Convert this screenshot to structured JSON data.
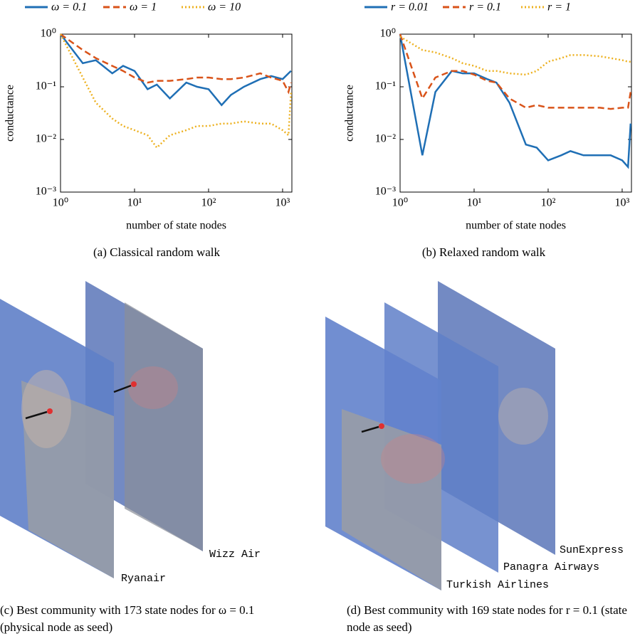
{
  "chart_data": [
    {
      "type": "line",
      "caption": "(a) Classical random walk",
      "xlabel": "number of state nodes",
      "ylabel": "conductance",
      "log_x": true,
      "log_y": true,
      "legend": "top",
      "xlim": [
        1,
        1335
      ],
      "ylim": [
        0.001,
        1
      ],
      "xticks": [
        {
          "value": 1,
          "label": "10⁰"
        },
        {
          "value": 10,
          "label": "10¹"
        },
        {
          "value": 100,
          "label": "10²"
        },
        {
          "value": 1000,
          "label": "10³"
        }
      ],
      "yticks": [
        {
          "value": 0.001,
          "label": "10⁻³"
        },
        {
          "value": 0.01,
          "label": "10⁻²"
        },
        {
          "value": 0.1,
          "label": "10⁻¹"
        },
        {
          "value": 1,
          "label": "10⁰"
        }
      ],
      "x": [
        1,
        2,
        3,
        5,
        7,
        10,
        15,
        20,
        30,
        50,
        70,
        100,
        150,
        200,
        300,
        500,
        700,
        1000,
        1200,
        1300
      ],
      "series": [
        {
          "name": "ω = 0.1",
          "color": "#1f6fb5",
          "dash": "solid",
          "values": [
            1,
            0.28,
            0.32,
            0.18,
            0.25,
            0.2,
            0.09,
            0.11,
            0.06,
            0.12,
            0.1,
            0.09,
            0.045,
            0.07,
            0.1,
            0.14,
            0.16,
            0.14,
            0.18,
            0.2
          ]
        },
        {
          "name": "ω = 1",
          "color": "#d95319",
          "dash": "dashed",
          "values": [
            1,
            0.5,
            0.35,
            0.25,
            0.2,
            0.15,
            0.12,
            0.13,
            0.13,
            0.14,
            0.15,
            0.15,
            0.14,
            0.14,
            0.15,
            0.18,
            0.15,
            0.13,
            0.08,
            0.12
          ]
        },
        {
          "name": "ω = 10",
          "color": "#edb120",
          "dash": "dotted",
          "values": [
            1,
            0.15,
            0.05,
            0.025,
            0.018,
            0.015,
            0.012,
            0.007,
            0.012,
            0.015,
            0.018,
            0.018,
            0.02,
            0.02,
            0.022,
            0.02,
            0.02,
            0.015,
            0.012,
            0.08
          ]
        }
      ]
    },
    {
      "type": "line",
      "caption": "(b) Relaxed random walk",
      "xlabel": "number of state nodes",
      "ylabel": "conductance",
      "log_x": true,
      "log_y": true,
      "legend": "top",
      "xlim": [
        1,
        1335
      ],
      "ylim": [
        0.001,
        1
      ],
      "xticks": [
        {
          "value": 1,
          "label": "10⁰"
        },
        {
          "value": 10,
          "label": "10¹"
        },
        {
          "value": 100,
          "label": "10²"
        },
        {
          "value": 1000,
          "label": "10³"
        }
      ],
      "yticks": [
        {
          "value": 0.001,
          "label": "10⁻³"
        },
        {
          "value": 0.01,
          "label": "10⁻²"
        },
        {
          "value": 0.1,
          "label": "10⁻¹"
        },
        {
          "value": 1,
          "label": "10⁰"
        }
      ],
      "x": [
        1,
        2,
        3,
        5,
        7,
        10,
        15,
        20,
        30,
        50,
        70,
        100,
        150,
        200,
        300,
        500,
        700,
        1000,
        1200,
        1300
      ],
      "series": [
        {
          "name": "r = 0.01",
          "color": "#1f6fb5",
          "dash": "solid",
          "values": [
            1,
            0.005,
            0.08,
            0.2,
            0.18,
            0.18,
            0.14,
            0.12,
            0.05,
            0.008,
            0.007,
            0.004,
            0.005,
            0.006,
            0.005,
            0.005,
            0.005,
            0.004,
            0.003,
            0.02
          ]
        },
        {
          "name": "r = 0.1",
          "color": "#d95319",
          "dash": "dashed",
          "values": [
            1,
            0.06,
            0.15,
            0.2,
            0.2,
            0.17,
            0.13,
            0.12,
            0.06,
            0.04,
            0.045,
            0.04,
            0.04,
            0.04,
            0.04,
            0.04,
            0.038,
            0.04,
            0.04,
            0.08
          ]
        },
        {
          "name": "r = 1",
          "color": "#edb120",
          "dash": "dotted",
          "values": [
            0.9,
            0.5,
            0.45,
            0.35,
            0.28,
            0.25,
            0.2,
            0.2,
            0.18,
            0.17,
            0.2,
            0.3,
            0.35,
            0.4,
            0.4,
            0.38,
            0.35,
            0.32,
            0.3,
            0.3
          ]
        }
      ]
    }
  ],
  "figures": [
    {
      "caption": "(c) Best community with 173 state nodes for ω = 0.1 (physical node as seed)",
      "labels": [
        "Wizz Air",
        "Ryanair"
      ]
    },
    {
      "caption": "(d) Best community with 169 state nodes for r = 0.1 (state node as seed)",
      "labels": [
        "SunExpress",
        "Panagra Airways",
        "Turkish Airlines"
      ]
    }
  ]
}
